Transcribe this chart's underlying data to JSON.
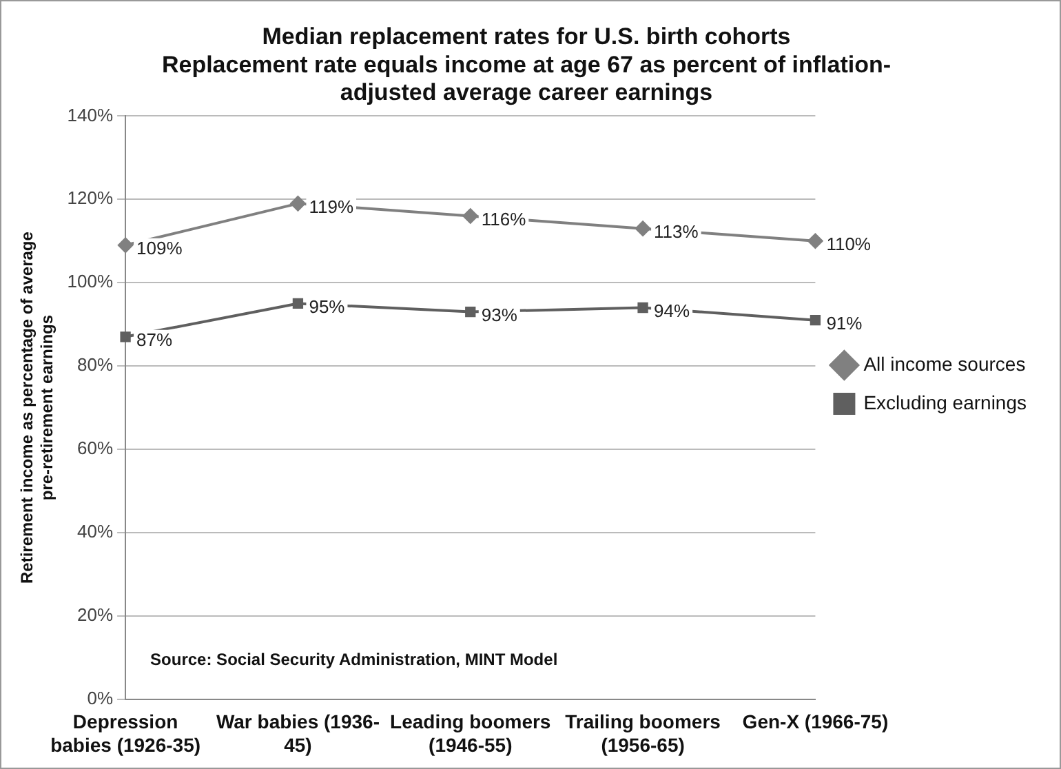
{
  "chart_data": {
    "type": "line",
    "title": "Median replacement rates for U.S. birth cohorts",
    "subtitle": "Replacement rate equals income at age 67 as percent of inflation-adjusted average career earnings",
    "ylabel": "Retirement income as percentage of average pre-retirement earnings",
    "categories": [
      "Depression babies (1926-35)",
      "War babies (1936-45)",
      "Leading boomers (1946-55)",
      "Trailing boomers (1956-65)",
      "Gen-X (1966-75)"
    ],
    "series": [
      {
        "name": "All income sources",
        "color": "#808080",
        "marker": "diamond",
        "values": [
          109,
          119,
          116,
          113,
          110
        ],
        "value_labels": [
          "109%",
          "119%",
          "116%",
          "113%",
          "110%"
        ]
      },
      {
        "name": "Excluding earnings",
        "color": "#5f5f5f",
        "marker": "square",
        "values": [
          87,
          95,
          93,
          94,
          91
        ],
        "value_labels": [
          "87%",
          "95%",
          "93%",
          "94%",
          "91%"
        ]
      }
    ],
    "ylim": [
      0,
      140
    ],
    "yticks": [
      {
        "value": 0,
        "label": "0%"
      },
      {
        "value": 20,
        "label": "20%"
      },
      {
        "value": 40,
        "label": "40%"
      },
      {
        "value": 60,
        "label": "60%"
      },
      {
        "value": 80,
        "label": "80%"
      },
      {
        "value": 100,
        "label": "100%"
      },
      {
        "value": 120,
        "label": "120%"
      },
      {
        "value": 140,
        "label": "140%"
      }
    ],
    "grid": "y",
    "legend": "right",
    "annotations": [
      "Source: Social Security Administration, MINT Model"
    ]
  }
}
